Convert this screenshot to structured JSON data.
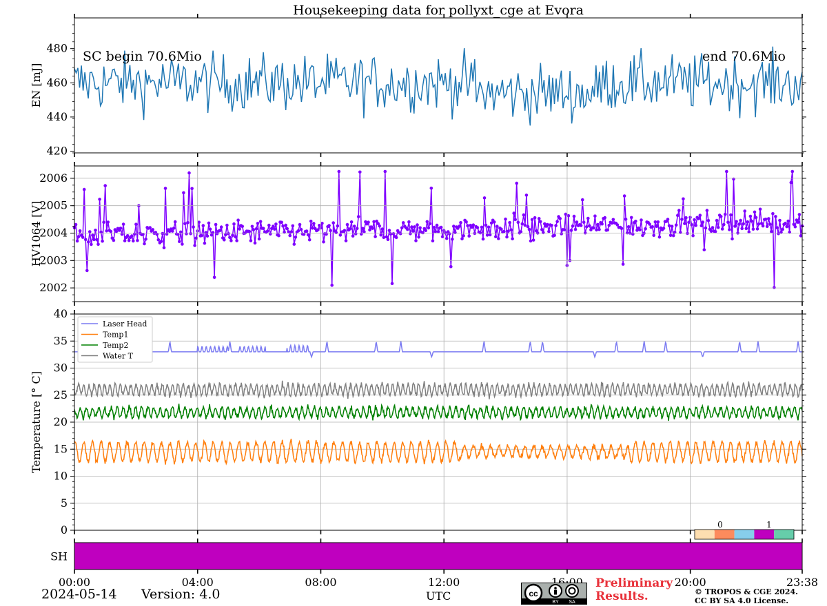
{
  "chart_data": [
    {
      "type": "line",
      "id": "energy",
      "title": "Housekeeping data for pollyxt_cge at Evora",
      "ylabel": "EN [mJ]",
      "ylim": [
        419,
        498
      ],
      "yticks": [
        420,
        440,
        460,
        480
      ],
      "annotations": {
        "left": "SC begin 70.6Mio",
        "right": "end 70.6Mio"
      },
      "series": [
        {
          "name": "EN",
          "color": "#1f77b4",
          "mean": 460,
          "spread": 11,
          "samples": 420,
          "dip_hours": [
            13,
            17
          ],
          "dip": -6
        }
      ],
      "grid": false
    },
    {
      "type": "line",
      "id": "hv",
      "ylabel": "HV1064 [V]",
      "ylim": [
        2001.5,
        2006.45
      ],
      "yticks": [
        2002,
        2003,
        2004,
        2005,
        2006
      ],
      "series": [
        {
          "name": "HV1064",
          "color": "#7f00ff",
          "markers": true,
          "start_level": 2003.9,
          "end_level": 2004.4,
          "spread": 0.5,
          "samples": 520
        }
      ],
      "grid": true
    },
    {
      "type": "line",
      "id": "temperature",
      "ylabel": "Temperature [$^\\circ C$]",
      "ylim": [
        0,
        40
      ],
      "yticks": [
        0,
        5,
        10,
        15,
        20,
        25,
        30,
        35,
        40
      ],
      "legend": "top-left",
      "series": [
        {
          "name": "Laser Head",
          "color": "#7b7bf2",
          "base": 33,
          "style": "spikes"
        },
        {
          "name": "Temp1",
          "color": "#ff7f0e",
          "base": 14.5,
          "amplitude": 1.8,
          "period_hours": 0.28
        },
        {
          "name": "Temp2",
          "color": "#008000",
          "base": 21.8,
          "amplitude": 0.9,
          "period_hours": 0.2
        },
        {
          "name": "Water T",
          "color": "#808080",
          "base": 26,
          "amplitude": 1.0,
          "period_hours": 0.17
        }
      ],
      "grid": true
    },
    {
      "type": "heatmap",
      "id": "shutter",
      "ylabel": "SH",
      "fill_color": "#bf00bf",
      "colorbar": {
        "ticks": [
          "0",
          "1"
        ],
        "colors": [
          "#fddeb0",
          "#fc8b5d",
          "#87ceeb",
          "#bf00bf",
          "#66cdaa"
        ]
      }
    }
  ],
  "x_axis": {
    "xlim_hours": [
      0,
      23.633
    ],
    "ticks": [
      {
        "h": 0,
        "label": "00:00"
      },
      {
        "h": 4,
        "label": "04:00"
      },
      {
        "h": 8,
        "label": "08:00"
      },
      {
        "h": 12,
        "label": "12:00"
      },
      {
        "h": 16,
        "label": "16:00"
      },
      {
        "h": 20,
        "label": "20:00"
      },
      {
        "h": 23.633,
        "label": "23:38"
      }
    ],
    "xlabel": "UTC"
  },
  "footer": {
    "date": "2024-05-14",
    "version": "Version: 4.0",
    "preliminary": "Preliminary Results.",
    "copyright_line1": "© TROPOS & CGE 2024.",
    "copyright_line2": "CC BY SA 4.0 License.",
    "cc_labels": [
      "BY",
      "SA"
    ]
  }
}
